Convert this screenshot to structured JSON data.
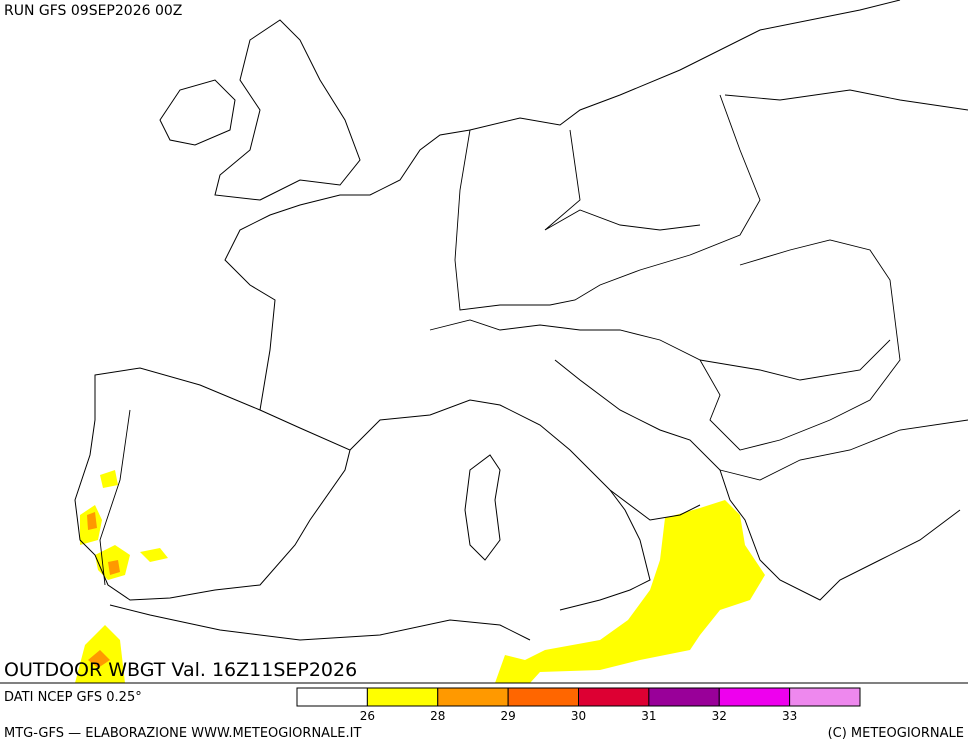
{
  "header": {
    "run": "RUN GFS 09SEP2026 00Z",
    "title": "OUTDOOR WBGT Val. 16Z11SEP2026",
    "source": "DATI NCEP GFS 0.25°"
  },
  "legend": {
    "thresholds": [
      26,
      28,
      29,
      30,
      31,
      32,
      33
    ],
    "colors": [
      "#ffffff",
      "#ffff00",
      "#ff9900",
      "#ff6600",
      "#dd0033",
      "#990099",
      "#ee00ee",
      "#ee88ee"
    ]
  },
  "footer": {
    "left": "MTG-GFS — ELABORAZIONE WWW.METEOGIORNALE.IT",
    "right": "(C) METEOGIORNALE"
  }
}
